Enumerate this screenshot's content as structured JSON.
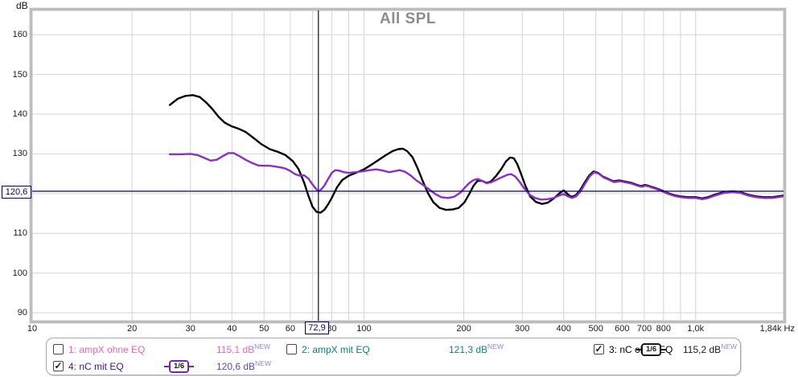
{
  "chart_data": {
    "type": "line",
    "title": "All SPL",
    "x_axis": {
      "unit": "Hz",
      "scale": "log",
      "min_hz": 10,
      "max_hz": 1840,
      "tick_labels": [
        {
          "f": 10,
          "label": "10"
        },
        {
          "f": 20,
          "label": "20"
        },
        {
          "f": 30,
          "label": "30"
        },
        {
          "f": 40,
          "label": "40"
        },
        {
          "f": 50,
          "label": "50"
        },
        {
          "f": 60,
          "label": "60"
        },
        {
          "f": 80,
          "label": "80"
        },
        {
          "f": 100,
          "label": "100"
        },
        {
          "f": 200,
          "label": "200"
        },
        {
          "f": 300,
          "label": "300"
        },
        {
          "f": 400,
          "label": "400"
        },
        {
          "f": 500,
          "label": "500"
        },
        {
          "f": 600,
          "label": "600"
        },
        {
          "f": 700,
          "label": "700"
        },
        {
          "f": 800,
          "label": "800"
        },
        {
          "f": 1000,
          "label": "1,0k"
        },
        {
          "f": 1840,
          "label": "1,84k Hz"
        }
      ],
      "grid_freqs": [
        20,
        30,
        40,
        50,
        60,
        70,
        80,
        90,
        100,
        200,
        300,
        400,
        500,
        600,
        700,
        800,
        900,
        1000
      ]
    },
    "y_axis": {
      "unit": "dB",
      "ticks": [
        160,
        150,
        140,
        130,
        120,
        110,
        100,
        90
      ],
      "ylim": [
        88.0,
        166.1
      ]
    },
    "cursor": {
      "freq_hz": 72.9,
      "freq_label": "72,9",
      "db": 120.6,
      "db_label": "120,6",
      "color": "#000080"
    },
    "grid_color": "#d4d4d4",
    "series": [
      {
        "name": "3: nC ohne EQ",
        "color": "#000000",
        "points": [
          [
            26,
            142.3
          ],
          [
            27.5,
            143.9
          ],
          [
            29,
            144.6
          ],
          [
            30.5,
            144.8
          ],
          [
            32,
            144.3
          ],
          [
            33.5,
            142.9
          ],
          [
            35,
            141.2
          ],
          [
            36.5,
            139.3
          ],
          [
            38,
            137.9
          ],
          [
            40,
            136.9
          ],
          [
            42,
            136.3
          ],
          [
            44,
            135.5
          ],
          [
            46.5,
            134.0
          ],
          [
            49,
            132.5
          ],
          [
            52,
            131.2
          ],
          [
            55,
            130.5
          ],
          [
            58,
            129.7
          ],
          [
            61,
            128.2
          ],
          [
            63.5,
            126.2
          ],
          [
            66,
            122.8
          ],
          [
            68,
            119.5
          ],
          [
            70,
            116.7
          ],
          [
            72,
            115.4
          ],
          [
            74,
            115.2
          ],
          [
            76,
            115.9
          ],
          [
            78,
            117.3
          ],
          [
            80,
            118.9
          ],
          [
            83,
            121.6
          ],
          [
            86,
            123.4
          ],
          [
            90,
            124.5
          ],
          [
            95,
            125.3
          ],
          [
            100,
            126.1
          ],
          [
            105,
            127.2
          ],
          [
            110,
            128.3
          ],
          [
            116,
            129.6
          ],
          [
            122,
            130.7
          ],
          [
            127,
            131.2
          ],
          [
            131,
            131.3
          ],
          [
            135,
            130.7
          ],
          [
            140,
            129.2
          ],
          [
            145,
            126.5
          ],
          [
            150,
            123.4
          ],
          [
            156,
            120.1
          ],
          [
            162,
            117.8
          ],
          [
            169,
            116.4
          ],
          [
            177,
            115.9
          ],
          [
            185,
            116.0
          ],
          [
            193,
            116.4
          ],
          [
            201,
            117.8
          ],
          [
            208,
            120.0
          ],
          [
            214,
            122.0
          ],
          [
            220,
            123.2
          ],
          [
            227,
            123.2
          ],
          [
            234,
            122.7
          ],
          [
            241,
            123.0
          ],
          [
            250,
            124.4
          ],
          [
            259,
            126.1
          ],
          [
            268,
            128.1
          ],
          [
            276,
            129.1
          ],
          [
            283,
            128.9
          ],
          [
            290,
            127.4
          ],
          [
            298,
            124.8
          ],
          [
            307,
            121.9
          ],
          [
            317,
            119.3
          ],
          [
            330,
            117.9
          ],
          [
            344,
            117.4
          ],
          [
            358,
            117.7
          ],
          [
            374,
            118.8
          ],
          [
            390,
            120.2
          ],
          [
            400,
            120.8
          ],
          [
            412,
            119.8
          ],
          [
            422,
            119.2
          ],
          [
            434,
            119.5
          ],
          [
            448,
            120.8
          ],
          [
            462,
            122.7
          ],
          [
            478,
            124.6
          ],
          [
            493,
            125.6
          ],
          [
            508,
            125.2
          ],
          [
            525,
            124.3
          ],
          [
            545,
            123.7
          ],
          [
            565,
            123.1
          ],
          [
            590,
            123.3
          ],
          [
            615,
            123.0
          ],
          [
            640,
            122.7
          ],
          [
            665,
            122.2
          ],
          [
            685,
            121.9
          ],
          [
            705,
            122.2
          ],
          [
            725,
            121.9
          ],
          [
            755,
            121.4
          ],
          [
            790,
            120.8
          ],
          [
            825,
            120.1
          ],
          [
            860,
            119.6
          ],
          [
            900,
            119.3
          ],
          [
            950,
            119.1
          ],
          [
            1000,
            119.1
          ],
          [
            1045,
            118.8
          ],
          [
            1090,
            119.1
          ],
          [
            1150,
            119.8
          ],
          [
            1220,
            120.4
          ],
          [
            1290,
            120.6
          ],
          [
            1360,
            120.4
          ],
          [
            1440,
            119.7
          ],
          [
            1520,
            119.3
          ],
          [
            1610,
            119.1
          ],
          [
            1700,
            119.1
          ],
          [
            1840,
            119.5
          ]
        ]
      },
      {
        "name": "4: nC mit EQ",
        "color": "#8c2fc4",
        "points": [
          [
            26,
            129.9
          ],
          [
            28,
            129.9
          ],
          [
            30,
            130.0
          ],
          [
            31.5,
            129.7
          ],
          [
            33,
            129.0
          ],
          [
            34.5,
            128.3
          ],
          [
            36,
            128.5
          ],
          [
            37.5,
            129.4
          ],
          [
            39,
            130.2
          ],
          [
            40.5,
            130.2
          ],
          [
            42,
            129.5
          ],
          [
            44,
            128.5
          ],
          [
            46,
            127.7
          ],
          [
            48,
            127.1
          ],
          [
            50,
            127.0
          ],
          [
            52,
            127.0
          ],
          [
            54,
            126.8
          ],
          [
            56,
            126.6
          ],
          [
            58,
            126.3
          ],
          [
            60,
            125.7
          ],
          [
            62,
            124.9
          ],
          [
            64,
            124.5
          ],
          [
            66,
            124.6
          ],
          [
            68,
            123.8
          ],
          [
            70,
            122.3
          ],
          [
            72,
            121.0
          ],
          [
            72.9,
            120.6
          ],
          [
            74,
            120.9
          ],
          [
            76,
            122.0
          ],
          [
            78,
            123.7
          ],
          [
            80,
            125.2
          ],
          [
            82,
            125.9
          ],
          [
            84,
            125.8
          ],
          [
            87,
            125.4
          ],
          [
            90,
            125.2
          ],
          [
            94,
            125.4
          ],
          [
            99,
            125.6
          ],
          [
            104,
            125.9
          ],
          [
            109,
            126.1
          ],
          [
            114,
            125.8
          ],
          [
            119,
            125.4
          ],
          [
            123,
            125.6
          ],
          [
            128,
            125.9
          ],
          [
            133,
            125.5
          ],
          [
            138,
            124.6
          ],
          [
            144,
            123.3
          ],
          [
            150,
            122.3
          ],
          [
            157,
            121.1
          ],
          [
            164,
            119.9
          ],
          [
            171,
            119.1
          ],
          [
            179,
            118.9
          ],
          [
            187,
            119.2
          ],
          [
            195,
            120.2
          ],
          [
            202,
            121.6
          ],
          [
            208,
            122.7
          ],
          [
            214,
            123.4
          ],
          [
            220,
            123.7
          ],
          [
            227,
            123.2
          ],
          [
            234,
            122.6
          ],
          [
            241,
            122.8
          ],
          [
            250,
            123.4
          ],
          [
            260,
            124.1
          ],
          [
            270,
            124.7
          ],
          [
            278,
            124.9
          ],
          [
            286,
            124.3
          ],
          [
            295,
            122.9
          ],
          [
            305,
            121.2
          ],
          [
            316,
            119.7
          ],
          [
            328,
            118.9
          ],
          [
            342,
            118.5
          ],
          [
            357,
            118.6
          ],
          [
            373,
            118.9
          ],
          [
            388,
            119.5
          ],
          [
            400,
            119.9
          ],
          [
            412,
            119.3
          ],
          [
            424,
            118.9
          ],
          [
            436,
            119.3
          ],
          [
            450,
            120.6
          ],
          [
            464,
            122.5
          ],
          [
            480,
            124.4
          ],
          [
            495,
            125.4
          ],
          [
            510,
            125.0
          ],
          [
            527,
            124.1
          ],
          [
            547,
            123.5
          ],
          [
            567,
            122.9
          ],
          [
            592,
            123.1
          ],
          [
            617,
            122.8
          ],
          [
            642,
            122.5
          ],
          [
            667,
            122.0
          ],
          [
            687,
            121.7
          ],
          [
            707,
            122.0
          ],
          [
            727,
            121.7
          ],
          [
            757,
            121.2
          ],
          [
            792,
            120.6
          ],
          [
            827,
            119.9
          ],
          [
            862,
            119.4
          ],
          [
            902,
            119.1
          ],
          [
            952,
            118.9
          ],
          [
            1002,
            118.9
          ],
          [
            1047,
            118.6
          ],
          [
            1092,
            118.9
          ],
          [
            1152,
            119.6
          ],
          [
            1222,
            120.2
          ],
          [
            1292,
            120.4
          ],
          [
            1362,
            120.2
          ],
          [
            1442,
            119.5
          ],
          [
            1522,
            119.1
          ],
          [
            1612,
            118.9
          ],
          [
            1702,
            118.9
          ],
          [
            1840,
            119.3
          ]
        ]
      }
    ]
  },
  "axis": {
    "db_unit": "dB",
    "title_color": "#8c8c8c"
  },
  "legend": {
    "badge_color": "#8f86f2",
    "items": [
      {
        "label": "1: ampX ohne EQ",
        "color": "#f266ad",
        "checked": false,
        "value": "115,1 dB",
        "value_color": "#dd6cc0",
        "badge": "NEW",
        "smoothing": null
      },
      {
        "label": "2: ampX mit EQ",
        "color": "#0d7f7f",
        "checked": false,
        "value": "121,3 dB",
        "value_color": "#128383",
        "badge": "NEW",
        "smoothing": null
      },
      {
        "label": "3: nC ohne EQ",
        "color": "#000000",
        "checked": true,
        "value": "115,2 dB",
        "value_color": "#1a1a1a",
        "badge": "NEW",
        "smoothing": "1/6",
        "smoothing_color": "#1a1a1a"
      },
      {
        "label": "4: nC mit EQ",
        "color": "#41129b",
        "checked": true,
        "value": "120,6 dB",
        "value_color": "#5848d8",
        "badge": "NEW",
        "smoothing": "1/6",
        "smoothing_color": "#7d22b8"
      }
    ]
  }
}
